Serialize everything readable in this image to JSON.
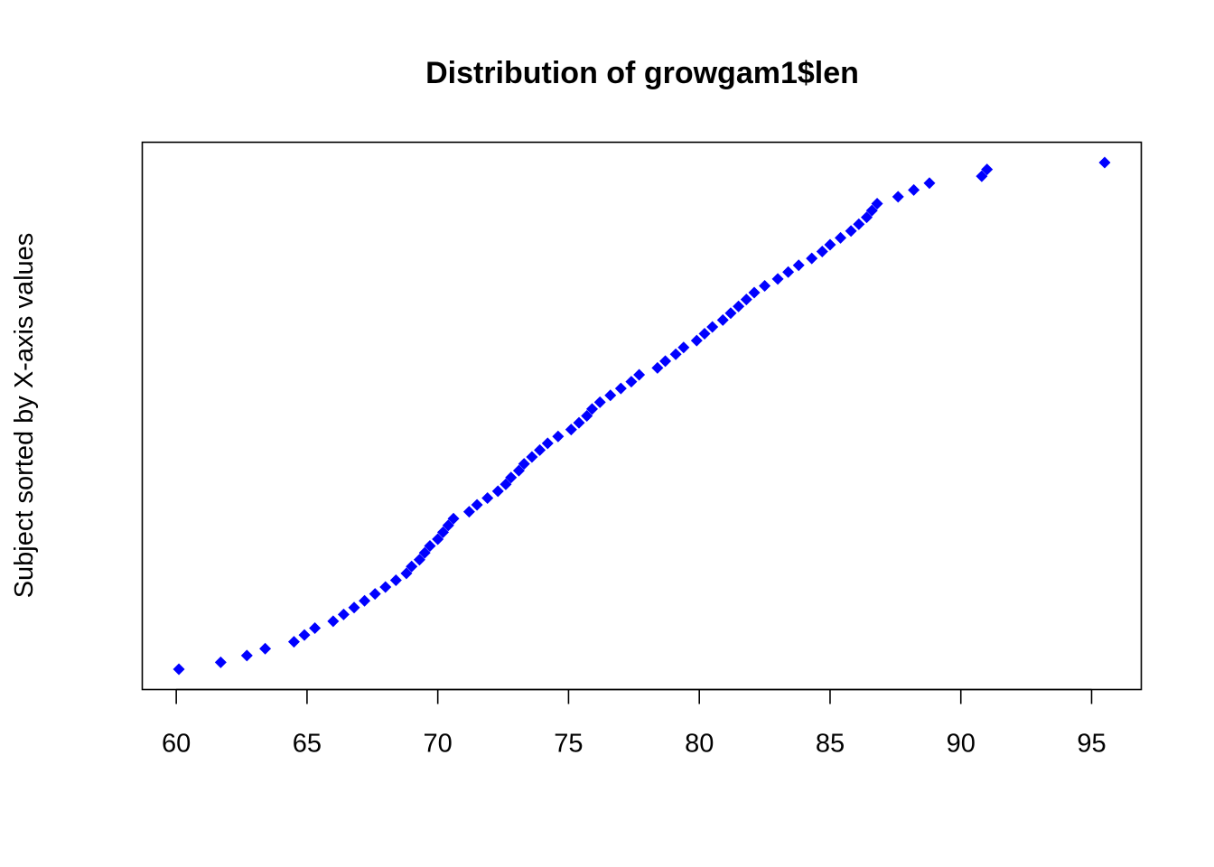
{
  "chart_data": {
    "type": "scatter",
    "title": "Distribution of growgam1$len",
    "xlabel": "",
    "ylabel": "Subject sorted by X-axis values",
    "xlim": [
      58.7,
      96.9
    ],
    "x_ticks": [
      60,
      65,
      70,
      75,
      80,
      85,
      90,
      95
    ],
    "marker": "diamond",
    "marker_color": "#0000ff",
    "y_axis_shown": false,
    "grid": false,
    "x_sorted": [
      60.1,
      61.7,
      62.7,
      63.4,
      64.5,
      64.9,
      65.3,
      66.0,
      66.4,
      66.8,
      67.2,
      67.6,
      68.0,
      68.4,
      68.8,
      69.0,
      69.3,
      69.5,
      69.7,
      70.0,
      70.2,
      70.4,
      70.6,
      71.2,
      71.5,
      71.9,
      72.3,
      72.6,
      72.8,
      73.1,
      73.3,
      73.6,
      73.9,
      74.2,
      74.6,
      75.1,
      75.4,
      75.7,
      75.9,
      76.2,
      76.6,
      77.0,
      77.4,
      77.7,
      78.4,
      78.7,
      79.1,
      79.4,
      79.9,
      80.2,
      80.5,
      80.9,
      81.2,
      81.5,
      81.8,
      82.1,
      82.5,
      83.0,
      83.4,
      83.8,
      84.3,
      84.7,
      85.0,
      85.4,
      85.8,
      86.1,
      86.4,
      86.6,
      86.8,
      87.6,
      88.2,
      88.8,
      90.8,
      91.0,
      95.5
    ]
  }
}
